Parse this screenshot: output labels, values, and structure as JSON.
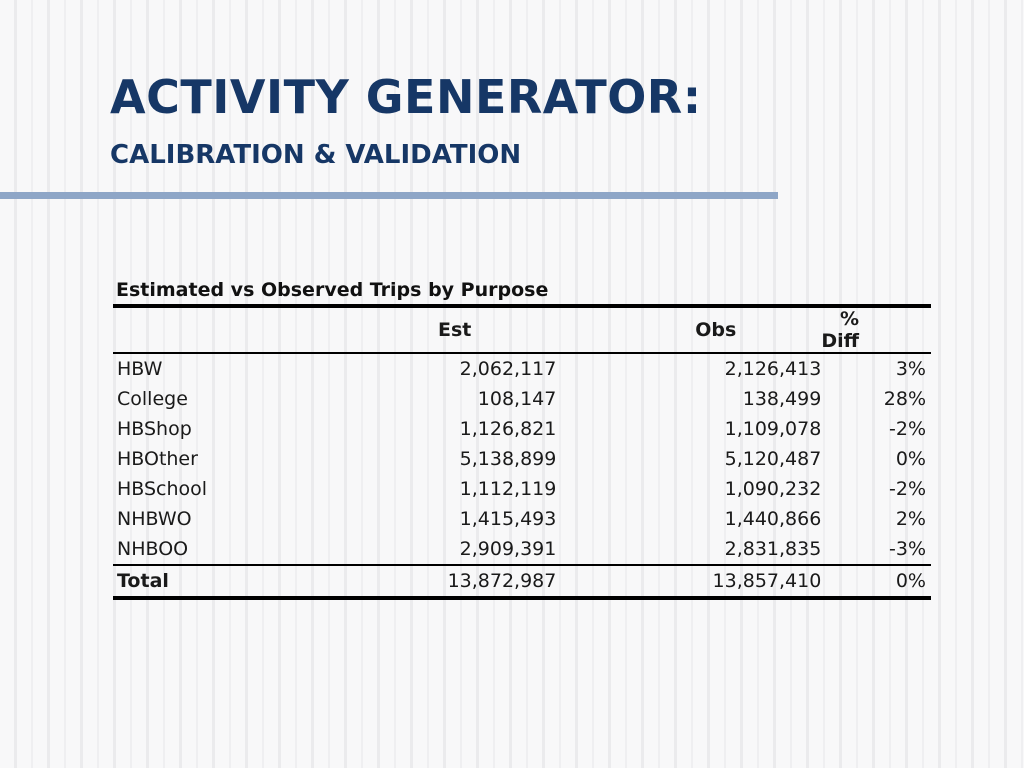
{
  "slide": {
    "title": "ACTIVITY GENERATOR:",
    "subtitle": "CALIBRATION & VALIDATION"
  },
  "table": {
    "caption": "Estimated vs Observed Trips by Purpose",
    "headers": {
      "purpose": "",
      "est": "Est",
      "obs": "Obs",
      "diff": "% Diff"
    },
    "rows": [
      {
        "purpose": "HBW",
        "est": "2,062,117",
        "obs": "2,126,413",
        "diff": "3%"
      },
      {
        "purpose": "College",
        "est": "108,147",
        "obs": "138,499",
        "diff": "28%"
      },
      {
        "purpose": "HBShop",
        "est": "1,126,821",
        "obs": "1,109,078",
        "diff": "-2%"
      },
      {
        "purpose": "HBOther",
        "est": "5,138,899",
        "obs": "5,120,487",
        "diff": "0%"
      },
      {
        "purpose": "HBSchool",
        "est": "1,112,119",
        "obs": "1,090,232",
        "diff": "-2%"
      },
      {
        "purpose": "NHBWO",
        "est": "1,415,493",
        "obs": "1,440,866",
        "diff": "2%"
      },
      {
        "purpose": "NHBOO",
        "est": "2,909,391",
        "obs": "2,831,835",
        "diff": "-3%"
      }
    ],
    "total": {
      "purpose": "Total",
      "est": "13,872,987",
      "obs": "13,857,410",
      "diff": "0%"
    }
  },
  "colors": {
    "title": "#163766",
    "rule": "#8ea6c7",
    "background": "#f5f5f6"
  }
}
